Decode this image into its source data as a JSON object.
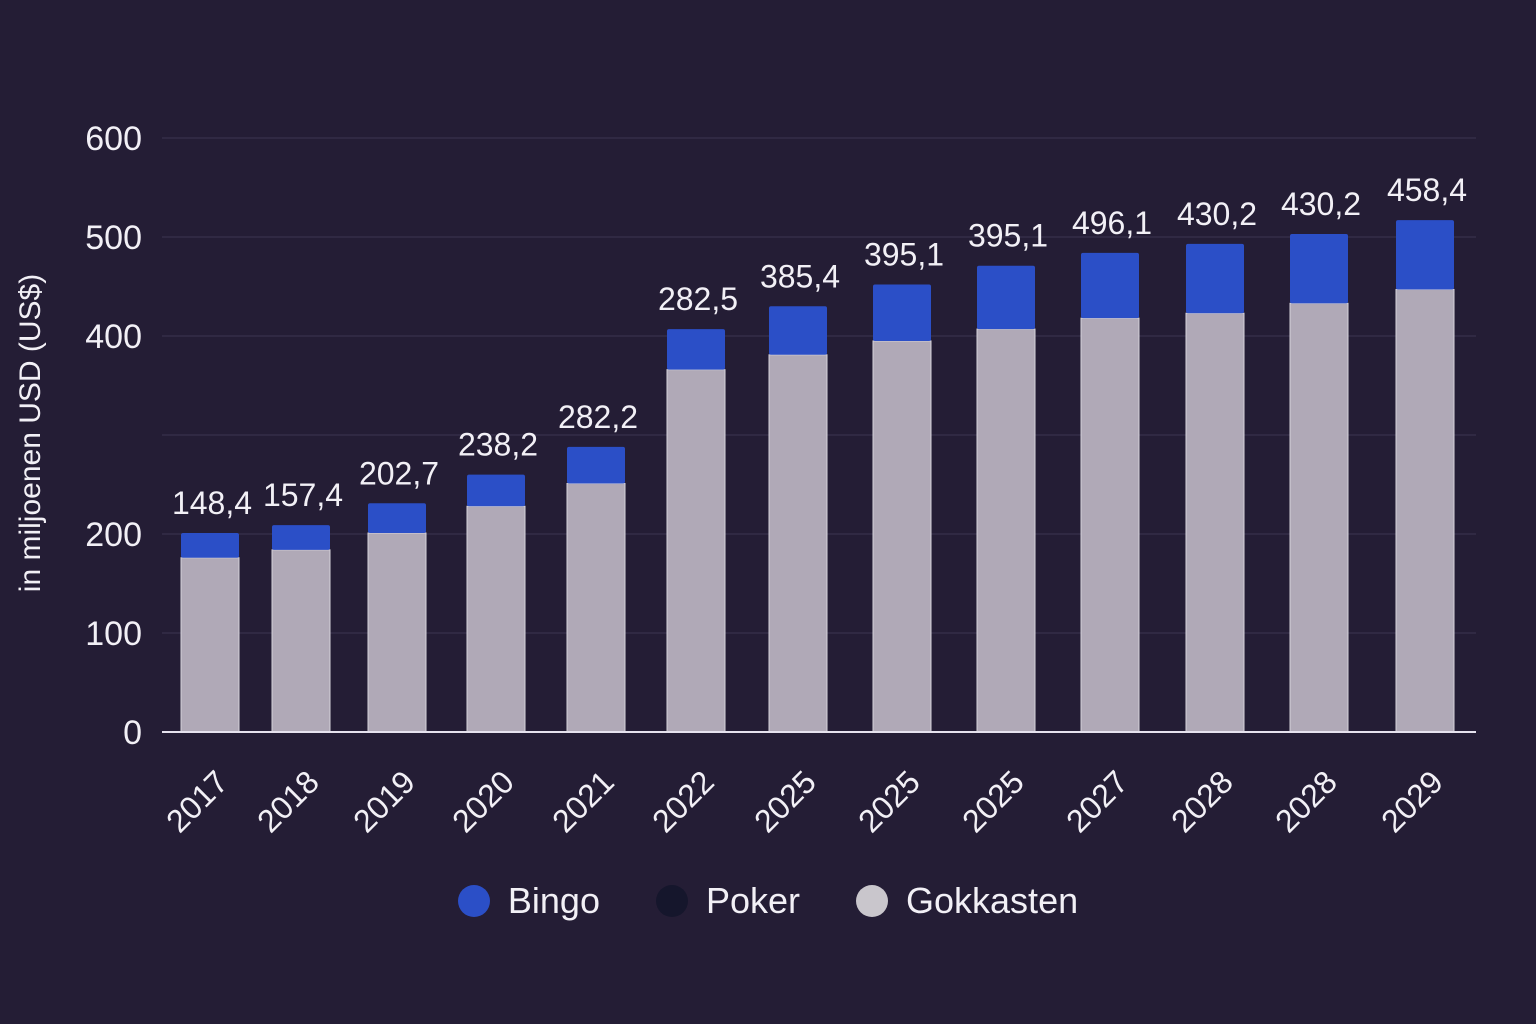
{
  "colors": {
    "background": "#241d35",
    "bingo": "#2b4fc7",
    "poker": "#15162c",
    "gokkasten": "#b0a9b7",
    "grid": "#3d3551",
    "axis": "#e6e2ee",
    "text": "#f2f0f6"
  },
  "chart_data": {
    "type": "bar",
    "stacked": true,
    "title": "",
    "xlabel": "",
    "ylabel": "in miljoenen USD (US$)",
    "ylim": [
      0,
      600
    ],
    "yticks": [
      0,
      100,
      200,
      300,
      400,
      500,
      600
    ],
    "ytick_labels": [
      "0",
      "100",
      "200",
      "",
      "400",
      "500",
      "600"
    ],
    "grid": true,
    "categories": [
      "2017",
      "2018",
      "2019",
      "2020",
      "2021",
      "2022",
      "2025",
      "2025",
      "2025",
      "2027",
      "2028",
      "2028",
      "2029"
    ],
    "series": [
      {
        "name": "Gokkasten",
        "values": [
          176,
          184,
          201,
          228,
          251,
          366,
          381,
          395,
          407,
          418,
          423,
          433,
          447
        ]
      },
      {
        "name": "Poker",
        "values": [
          0,
          0,
          0,
          0,
          0,
          0,
          0,
          0,
          0,
          0,
          0,
          0,
          0
        ]
      },
      {
        "name": "Bingo",
        "values": [
          25,
          25,
          30,
          32,
          37,
          41,
          49,
          57,
          64,
          66,
          70,
          70,
          70
        ]
      }
    ],
    "data_labels": [
      "148,4",
      "157,4",
      "202,7",
      "238,2",
      "282,2",
      "282,5",
      "385,4",
      "395,1",
      "395,1",
      "496,1",
      "430,2",
      "430,2",
      "458,4"
    ],
    "legend": {
      "position": "bottom",
      "items": [
        {
          "name": "Bingo",
          "color": "#2b4fc7"
        },
        {
          "name": "Poker",
          "color": "#15162c"
        },
        {
          "name": "Gokkasten",
          "color": "#c9c6cc"
        }
      ]
    }
  }
}
